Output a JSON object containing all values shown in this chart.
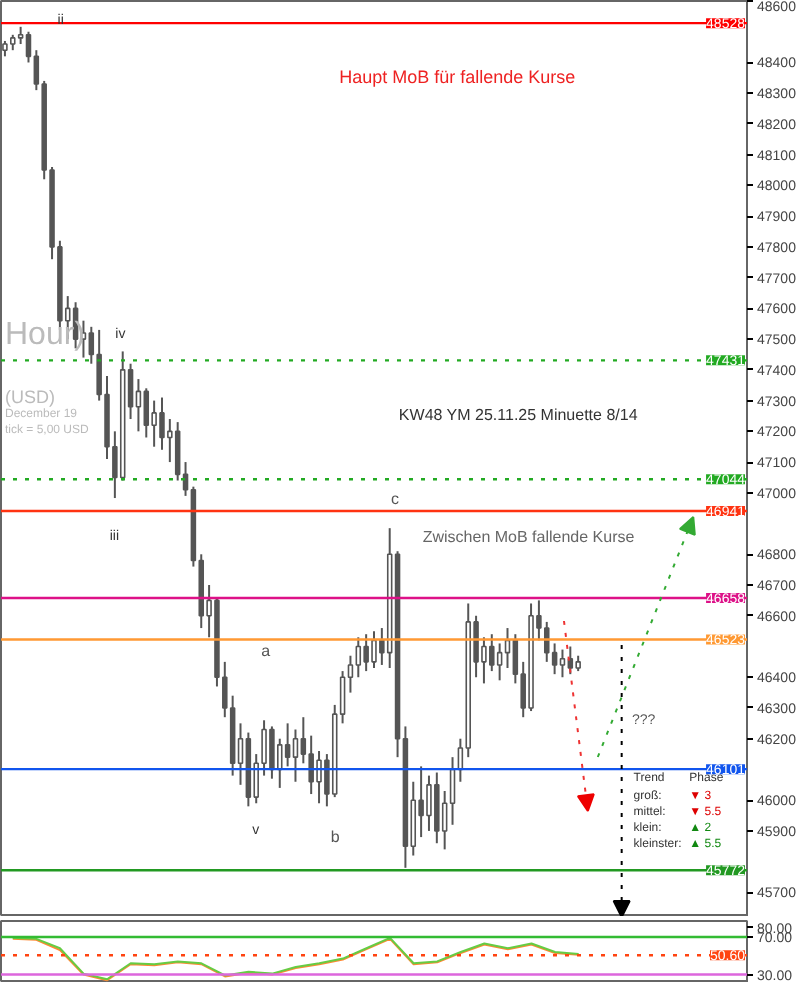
{
  "chart_data": [
    {
      "type": "candlestick",
      "categories": [
        null,
        null,
        null,
        null,
        null,
        null,
        null,
        null,
        null,
        null,
        null,
        null,
        null,
        null,
        null,
        null,
        null,
        null,
        null,
        null,
        null,
        null,
        null,
        null,
        null,
        null,
        null,
        null,
        null,
        null,
        null,
        null,
        null,
        null,
        null,
        null,
        null,
        null,
        null,
        null,
        null,
        null,
        null,
        null,
        null,
        null,
        null,
        null,
        null,
        null,
        null,
        null,
        null,
        null,
        null,
        null,
        null,
        null,
        null,
        null,
        null,
        null,
        null,
        null,
        null,
        null,
        null,
        null,
        null,
        null,
        null,
        null,
        null,
        null,
        null,
        null,
        null,
        null,
        null,
        null,
        null,
        null,
        null,
        null,
        null,
        null,
        null,
        null,
        null,
        null,
        null,
        null,
        null,
        null,
        null
      ],
      "ohlc": [
        [
          48440,
          48470,
          48420,
          48460
        ],
        [
          48460,
          48490,
          48440,
          48480
        ],
        [
          48480,
          48516,
          48460,
          48490
        ],
        [
          48490,
          48500,
          48400,
          48420
        ],
        [
          48420,
          48440,
          48310,
          48330
        ],
        [
          48330,
          48340,
          48020,
          48050
        ],
        [
          48050,
          48060,
          47760,
          47800
        ],
        [
          47800,
          47820,
          47530,
          47560
        ],
        [
          47560,
          47640,
          47500,
          47600
        ],
        [
          47600,
          47620,
          47470,
          47500
        ],
        [
          47500,
          47560,
          47440,
          47520
        ],
        [
          47520,
          47540,
          47420,
          47450
        ],
        [
          47450,
          47530,
          47300,
          47320
        ],
        [
          47320,
          47380,
          47110,
          47150
        ],
        [
          47150,
          47200,
          46983,
          47050
        ],
        [
          47050,
          47460,
          47040,
          47400
        ],
        [
          47400,
          47420,
          47240,
          47280
        ],
        [
          47280,
          47370,
          47200,
          47330
        ],
        [
          47330,
          47340,
          47180,
          47220
        ],
        [
          47220,
          47300,
          47150,
          47260
        ],
        [
          47260,
          47310,
          47140,
          47180
        ],
        [
          47180,
          47240,
          47100,
          47200
        ],
        [
          47200,
          47230,
          47040,
          47060
        ],
        [
          47060,
          47100,
          46990,
          47010
        ],
        [
          47010,
          47020,
          46760,
          46780
        ],
        [
          46780,
          46800,
          46560,
          46600
        ],
        [
          46600,
          46700,
          46530,
          46650
        ],
        [
          46650,
          46660,
          46370,
          46400
        ],
        [
          46400,
          46450,
          46270,
          46300
        ],
        [
          46300,
          46340,
          46080,
          46120
        ],
        [
          46120,
          46250,
          46050,
          46200
        ],
        [
          46200,
          46220,
          45980,
          46010
        ],
        [
          46010,
          46150,
          45990,
          46120
        ],
        [
          46120,
          46260,
          46080,
          46230
        ],
        [
          46230,
          46240,
          46070,
          46100
        ],
        [
          46100,
          46200,
          46040,
          46180
        ],
        [
          46180,
          46250,
          46110,
          46140
        ],
        [
          46140,
          46230,
          46060,
          46200
        ],
        [
          46200,
          46270,
          46120,
          46150
        ],
        [
          46150,
          46210,
          46020,
          46060
        ],
        [
          46060,
          46160,
          45990,
          46130
        ],
        [
          46130,
          46150,
          45980,
          46020
        ],
        [
          46020,
          46310,
          46010,
          46280
        ],
        [
          46280,
          46420,
          46250,
          46400
        ],
        [
          46400,
          46470,
          46350,
          46440
        ],
        [
          46440,
          46530,
          46400,
          46500
        ],
        [
          46500,
          46540,
          46420,
          46450
        ],
        [
          46450,
          46550,
          46430,
          46520
        ],
        [
          46520,
          46560,
          46440,
          46480
        ],
        [
          46480,
          46885,
          46430,
          46800
        ],
        [
          46800,
          46810,
          46140,
          46200
        ],
        [
          46200,
          46240,
          45780,
          45850
        ],
        [
          45850,
          46060,
          45820,
          46000
        ],
        [
          46000,
          46110,
          45880,
          45950
        ],
        [
          45950,
          46080,
          45900,
          46050
        ],
        [
          46050,
          46090,
          45860,
          45900
        ],
        [
          45900,
          46030,
          45840,
          45990
        ],
        [
          45990,
          46140,
          45920,
          46100
        ],
        [
          46100,
          46200,
          46060,
          46170
        ],
        [
          46170,
          46640,
          46140,
          46580
        ],
        [
          46580,
          46600,
          46400,
          46450
        ],
        [
          46450,
          46530,
          46380,
          46500
        ],
        [
          46500,
          46540,
          46420,
          46440
        ],
        [
          46440,
          46510,
          46390,
          46480
        ],
        [
          46480,
          46560,
          46430,
          46520
        ],
        [
          46520,
          46540,
          46380,
          46410
        ],
        [
          46410,
          46450,
          46270,
          46300
        ],
        [
          46300,
          46640,
          46290,
          46600
        ],
        [
          46600,
          46650,
          46520,
          46560
        ],
        [
          46560,
          46580,
          46450,
          46480
        ],
        [
          46480,
          46510,
          46410,
          46440
        ],
        [
          46440,
          46490,
          46400,
          46460
        ],
        [
          46460,
          46500,
          46410,
          46430
        ],
        [
          46430,
          46470,
          46420,
          46450
        ],
        null,
        null,
        null,
        null,
        null,
        null,
        null,
        null,
        null,
        null,
        null,
        null,
        null,
        null,
        null,
        null,
        null,
        null,
        null,
        null,
        null
      ],
      "color": "#555555",
      "ylim": [
        45620,
        48600
      ],
      "yticks": [
        48600,
        48400,
        48300,
        48200,
        48100,
        48000,
        47900,
        47800,
        47700,
        47600,
        47500,
        47400,
        47300,
        47200,
        47100,
        47000,
        46800,
        46700,
        46600,
        46400,
        46300,
        46200,
        46000,
        45900,
        45700
      ],
      "tick_labels": "y",
      "grid": false,
      "ref_lines": [
        {
          "axis": "y",
          "value": 48528,
          "label": "48528",
          "color": "#ff0000",
          "line_style": "solid"
        },
        {
          "axis": "y",
          "value": 47431,
          "label": "47431",
          "color": "#22aa22",
          "line_style": "dotted"
        },
        {
          "axis": "y",
          "value": 47044,
          "label": "47044",
          "color": "#22aa22",
          "line_style": "dotted"
        },
        {
          "axis": "y",
          "value": 46941,
          "label": "46941",
          "color": "#ff3311",
          "line_style": "solid"
        },
        {
          "axis": "y",
          "value": 46658,
          "label": "46658",
          "color": "#dd1188",
          "line_style": "solid"
        },
        {
          "axis": "y",
          "value": 46523,
          "label": "46523",
          "color": "#ff9933",
          "line_style": "solid"
        },
        {
          "axis": "y",
          "value": 46101,
          "label": "46101",
          "color": "#1155ee",
          "line_style": "solid"
        },
        {
          "axis": "y",
          "value": 45772,
          "label": "45772",
          "color": "#229922",
          "line_style": "solid"
        }
      ],
      "annotations": [
        "Haupt MoB für  fallende Kurse",
        "KW48 YM 25.11.25 Minuette 8/14",
        "Zwischen MoB fallende Kurse",
        "ii",
        "iii",
        "iv",
        "v",
        "a",
        "b",
        "c",
        "???",
        "Hour)",
        "(USD)",
        "December 19",
        "tick = 5,00 USD",
        "Trend",
        "Phase",
        "groß:",
        "▼ 3",
        "mittel:",
        "▼ 5.5",
        "klein:",
        "▲ 2",
        "kleinster:",
        "▲ 5.5"
      ]
    },
    {
      "type": "line",
      "categories": [
        null,
        null,
        null,
        null,
        null,
        null,
        null,
        null,
        null,
        null,
        null,
        null,
        null,
        null,
        null,
        null,
        null,
        null,
        null,
        null,
        null,
        null,
        null,
        null,
        null
      ],
      "series": [
        {
          "color": "#ff8833",
          "values": [
            68,
            67,
            56,
            30,
            24,
            41,
            40,
            43,
            41,
            28,
            32,
            30,
            37,
            41,
            46,
            57,
            68,
            41,
            43,
            53,
            62,
            57,
            62,
            53,
            51
          ]
        },
        {
          "color": "#66cc44",
          "values": [
            69,
            68,
            58,
            31,
            25,
            42,
            41,
            44,
            42,
            29,
            33,
            31,
            38,
            42,
            47,
            58,
            69,
            42,
            44,
            54,
            63,
            58,
            63,
            54,
            52
          ]
        }
      ],
      "ylim": [
        21,
        87
      ],
      "yticks": [
        {
          "value": 80,
          "label": "80.00"
        },
        {
          "value": 70,
          "label": "70.00"
        },
        {
          "value": 30,
          "label": "30.00"
        }
      ],
      "tick_labels": "y",
      "grid": false,
      "ref_lines": [
        {
          "axis": "y",
          "value": 70,
          "color": "#33bb33",
          "line_style": "solid"
        },
        {
          "axis": "y",
          "value": 50.6,
          "label": "50.60",
          "color": "#ff4411",
          "line_style": "dotted"
        },
        {
          "axis": "y",
          "value": 30,
          "color": "#dd66dd",
          "line_style": "solid"
        }
      ]
    }
  ]
}
